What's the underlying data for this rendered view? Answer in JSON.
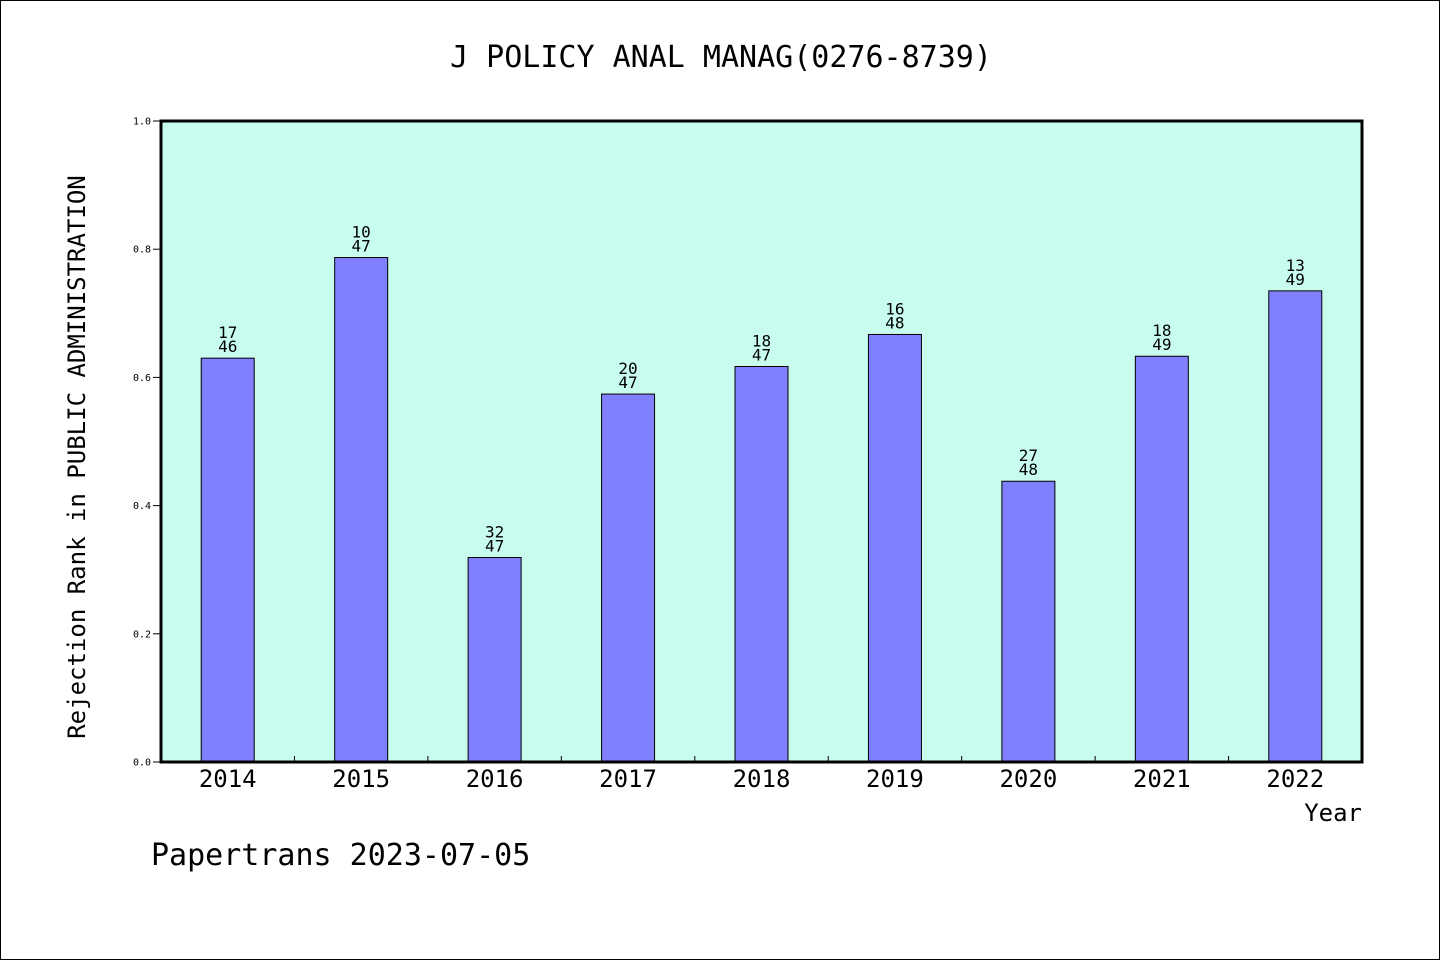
{
  "chart_data": {
    "type": "bar",
    "title": "J POLICY ANAL MANAG(0276-8739)",
    "xlabel": "Year",
    "ylabel": "Rejection Rank in PUBLIC ADMINISTRATION",
    "categories": [
      "2014",
      "2015",
      "2016",
      "2017",
      "2018",
      "2019",
      "2020",
      "2021",
      "2022"
    ],
    "values": [
      0.63,
      0.787,
      0.319,
      0.574,
      0.617,
      0.667,
      0.438,
      0.633,
      0.735
    ],
    "rank": [
      "17",
      "10",
      "32",
      "20",
      "18",
      "16",
      "27",
      "18",
      "13"
    ],
    "total": [
      "46",
      "47",
      "47",
      "47",
      "47",
      "48",
      "48",
      "49",
      "49"
    ],
    "ylim": [
      0,
      1.0
    ],
    "yticks": [
      "0.0",
      "0.2",
      "0.4",
      "0.6",
      "0.8",
      "1.0"
    ],
    "grid": false,
    "legend": "none",
    "colors": {
      "plot_background": "#c8fcee",
      "bar_fill": "#8080ff",
      "bar_stroke": "#000000",
      "axis": "#000000"
    }
  },
  "footer": "Papertrans 2023-07-05"
}
